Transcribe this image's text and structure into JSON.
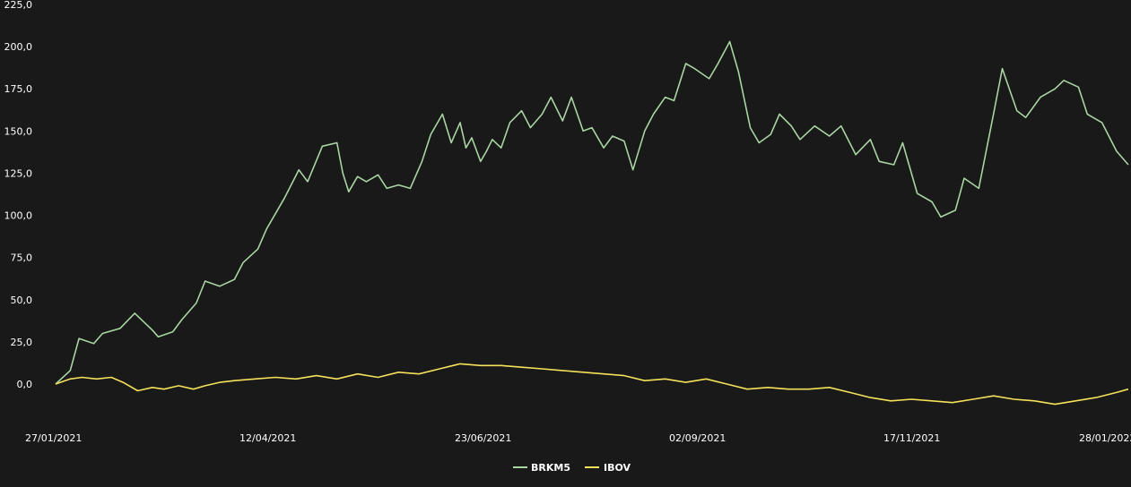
{
  "chart_data": {
    "type": "line",
    "title": "",
    "xlabel": "",
    "ylabel": "",
    "ylim": [
      -13,
      225
    ],
    "y_ticks": [
      "225,0",
      "200,0",
      "175,0",
      "150,0",
      "125,0",
      "100,0",
      "75,0",
      "50,0",
      "25,0",
      "0,0"
    ],
    "y_tick_values": [
      225,
      200,
      175,
      150,
      125,
      100,
      75,
      50,
      25,
      0
    ],
    "x_ticks": [
      "27/01/2021",
      "12/04/2021",
      "23/06/2021",
      "02/09/2021",
      "17/11/2021",
      "28/01/2022"
    ],
    "x_range": [
      "2021-01-27",
      "2022-01-28"
    ],
    "grid": false,
    "legend_position": "bottom-center",
    "series": [
      {
        "name": "BRKM5",
        "color": "#a8d5a2",
        "x": [
          "2021-01-27",
          "2021-02-01",
          "2021-02-04",
          "2021-02-09",
          "2021-02-12",
          "2021-02-18",
          "2021-02-23",
          "2021-03-01",
          "2021-03-03",
          "2021-03-08",
          "2021-03-11",
          "2021-03-16",
          "2021-03-19",
          "2021-03-24",
          "2021-03-29",
          "2021-04-01",
          "2021-04-06",
          "2021-04-09",
          "2021-04-12",
          "2021-04-15",
          "2021-04-20",
          "2021-04-23",
          "2021-04-28",
          "2021-05-03",
          "2021-05-05",
          "2021-05-07",
          "2021-05-10",
          "2021-05-13",
          "2021-05-17",
          "2021-05-20",
          "2021-05-24",
          "2021-05-28",
          "2021-06-01",
          "2021-06-04",
          "2021-06-08",
          "2021-06-11",
          "2021-06-14",
          "2021-06-16",
          "2021-06-18",
          "2021-06-21",
          "2021-06-23",
          "2021-06-25",
          "2021-06-28",
          "2021-07-01",
          "2021-07-05",
          "2021-07-08",
          "2021-07-12",
          "2021-07-15",
          "2021-07-19",
          "2021-07-22",
          "2021-07-26",
          "2021-07-29",
          "2021-08-02",
          "2021-08-05",
          "2021-08-09",
          "2021-08-12",
          "2021-08-16",
          "2021-08-19",
          "2021-08-23",
          "2021-08-26",
          "2021-08-30",
          "2021-09-02",
          "2021-09-07",
          "2021-09-10",
          "2021-09-14",
          "2021-09-17",
          "2021-09-21",
          "2021-09-24",
          "2021-09-28",
          "2021-10-01",
          "2021-10-05",
          "2021-10-08",
          "2021-10-13",
          "2021-10-18",
          "2021-10-22",
          "2021-10-27",
          "2021-11-01",
          "2021-11-04",
          "2021-11-09",
          "2021-11-12",
          "2021-11-17",
          "2021-11-22",
          "2021-11-25",
          "2021-11-30",
          "2021-12-03",
          "2021-12-08",
          "2021-12-13",
          "2021-12-16",
          "2021-12-21",
          "2021-12-24",
          "2021-12-29",
          "2022-01-03",
          "2022-01-06",
          "2022-01-11",
          "2022-01-14",
          "2022-01-19",
          "2022-01-24",
          "2022-01-28"
        ],
        "values": [
          0,
          8,
          27,
          24,
          30,
          33,
          42,
          32,
          28,
          31,
          38,
          48,
          61,
          58,
          62,
          72,
          80,
          92,
          101,
          110,
          127,
          120,
          141,
          143,
          125,
          114,
          123,
          120,
          124,
          116,
          118,
          116,
          132,
          148,
          160,
          143,
          155,
          140,
          146,
          132,
          138,
          145,
          140,
          155,
          162,
          152,
          160,
          170,
          156,
          170,
          150,
          152,
          140,
          147,
          144,
          127,
          150,
          160,
          170,
          168,
          190,
          187,
          181,
          190,
          203,
          185,
          152,
          143,
          148,
          160,
          153,
          145,
          153,
          147,
          153,
          136,
          145,
          132,
          130,
          143,
          113,
          108,
          99,
          103,
          122,
          116,
          160,
          187,
          162,
          158,
          170,
          175,
          180,
          176,
          160,
          155,
          138,
          130
        ]
      },
      {
        "name": "IBOV",
        "color": "#f5e15a",
        "x": [
          "2021-01-27",
          "2021-02-01",
          "2021-02-05",
          "2021-02-10",
          "2021-02-15",
          "2021-02-19",
          "2021-02-24",
          "2021-03-01",
          "2021-03-05",
          "2021-03-10",
          "2021-03-15",
          "2021-03-19",
          "2021-03-24",
          "2021-03-29",
          "2021-04-05",
          "2021-04-12",
          "2021-04-19",
          "2021-04-26",
          "2021-05-03",
          "2021-05-10",
          "2021-05-17",
          "2021-05-24",
          "2021-05-31",
          "2021-06-07",
          "2021-06-14",
          "2021-06-21",
          "2021-06-28",
          "2021-07-05",
          "2021-07-12",
          "2021-07-19",
          "2021-07-26",
          "2021-08-02",
          "2021-08-09",
          "2021-08-16",
          "2021-08-23",
          "2021-08-30",
          "2021-09-06",
          "2021-09-13",
          "2021-09-20",
          "2021-09-27",
          "2021-10-04",
          "2021-10-11",
          "2021-10-18",
          "2021-10-25",
          "2021-11-01",
          "2021-11-08",
          "2021-11-15",
          "2021-11-22",
          "2021-11-29",
          "2021-12-06",
          "2021-12-13",
          "2021-12-20",
          "2021-12-27",
          "2022-01-03",
          "2022-01-10",
          "2022-01-17",
          "2022-01-24",
          "2022-01-28"
        ],
        "values": [
          0,
          3,
          4,
          3,
          4,
          1,
          -4,
          -2,
          -3,
          -1,
          -3,
          -1,
          1,
          2,
          3,
          4,
          3,
          5,
          3,
          6,
          4,
          7,
          6,
          9,
          12,
          11,
          11,
          10,
          9,
          8,
          7,
          6,
          5,
          2,
          3,
          1,
          3,
          0,
          -3,
          -2,
          -3,
          -3,
          -2,
          -5,
          -8,
          -10,
          -9,
          -10,
          -11,
          -9,
          -7,
          -9,
          -10,
          -12,
          -10,
          -8,
          -5,
          -3
        ]
      }
    ]
  }
}
